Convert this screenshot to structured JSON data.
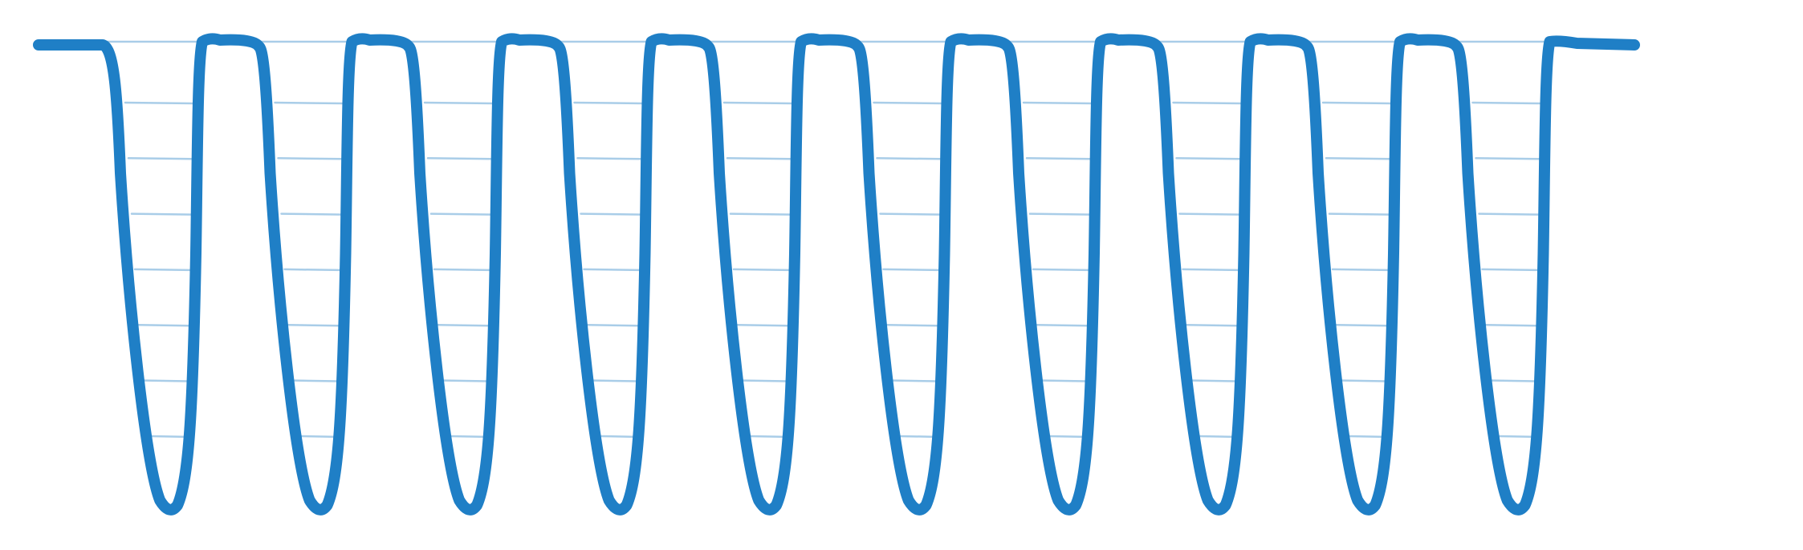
{
  "diagram": {
    "kind": "square-wave-trough-pattern",
    "trough_count": 10,
    "rungs_per_trough": 7,
    "colors": {
      "wave": "#1f7fc6",
      "rungs": "#a9cde8",
      "background": "#ffffff"
    }
  }
}
